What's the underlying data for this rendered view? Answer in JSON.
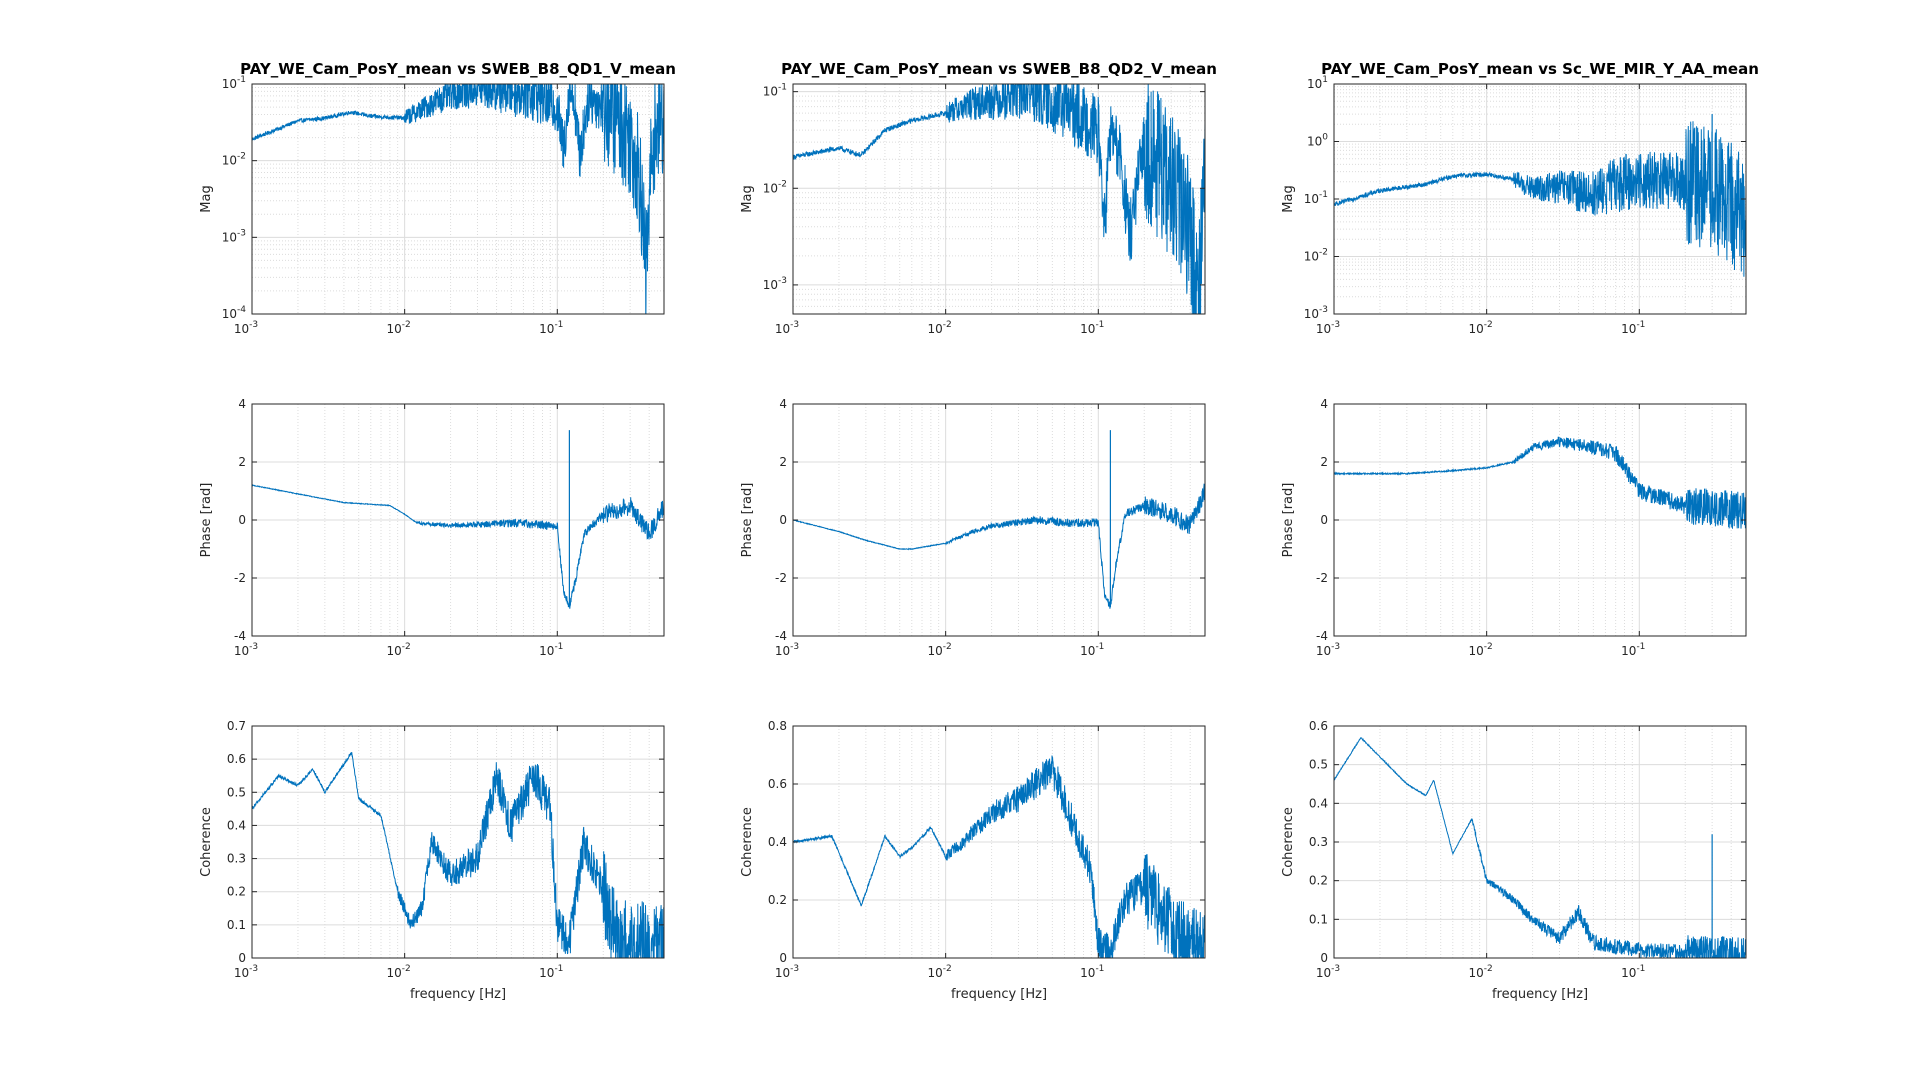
{
  "figure": {
    "colors": {
      "line": "#0072BD",
      "grid": "#dcdcdc",
      "axis": "#262626"
    },
    "grid": true
  },
  "chart_data": [
    {
      "type": "line",
      "title": "PAY_WE_Cam_PosY_mean vs SWEB_B8_QD1_V_mean",
      "ylabel": "Mag",
      "xlabel": "",
      "xscale": "log",
      "yscale": "log",
      "xlim": [
        0.001,
        0.5
      ],
      "ylim": [
        0.0001,
        0.1
      ],
      "xticks": [
        0.001,
        0.01,
        0.1
      ],
      "xtick_labels": [
        "10",
        "10",
        "10"
      ],
      "xtick_exps": [
        "-3",
        "-2",
        "-1"
      ],
      "yticks": [
        0.0001,
        0.001,
        0.01,
        0.1
      ],
      "ytick_labels": [
        "10",
        "10",
        "10",
        "10"
      ],
      "ytick_exps": [
        "-4",
        "-3",
        "-2",
        "-1"
      ],
      "profile": [
        [
          0.001,
          0.019
        ],
        [
          0.002,
          0.033
        ],
        [
          0.003,
          0.036
        ],
        [
          0.0045,
          0.043
        ],
        [
          0.006,
          0.038
        ],
        [
          0.01,
          0.036
        ],
        [
          0.015,
          0.055
        ],
        [
          0.02,
          0.075
        ],
        [
          0.03,
          0.09
        ],
        [
          0.04,
          0.088
        ],
        [
          0.06,
          0.08
        ],
        [
          0.08,
          0.065
        ],
        [
          0.1,
          0.05
        ],
        [
          0.11,
          0.013
        ],
        [
          0.12,
          0.09
        ],
        [
          0.13,
          0.06
        ],
        [
          0.14,
          0.011
        ],
        [
          0.16,
          0.07
        ],
        [
          0.2,
          0.05
        ],
        [
          0.25,
          0.035
        ],
        [
          0.3,
          0.02
        ],
        [
          0.35,
          0.006
        ],
        [
          0.38,
          0.0003
        ],
        [
          0.42,
          0.02
        ],
        [
          0.5,
          0.04
        ]
      ],
      "noise_start": 0.01,
      "noise_amp": 0.35,
      "spikes": []
    },
    {
      "type": "line",
      "title": "PAY_WE_Cam_PosY_mean vs SWEB_B8_QD2_V_mean",
      "ylabel": "Mag",
      "xlabel": "",
      "xscale": "log",
      "yscale": "log",
      "xlim": [
        0.001,
        0.5
      ],
      "ylim": [
        0.0005,
        0.12
      ],
      "xticks": [
        0.001,
        0.01,
        0.1
      ],
      "xtick_labels": [
        "10",
        "10",
        "10"
      ],
      "xtick_exps": [
        "-3",
        "-2",
        "-1"
      ],
      "yticks": [
        0.001,
        0.01,
        0.1
      ],
      "ytick_labels": [
        "10",
        "10",
        "10"
      ],
      "ytick_exps": [
        "-3",
        "-2",
        "-1"
      ],
      "profile": [
        [
          0.001,
          0.021
        ],
        [
          0.002,
          0.026
        ],
        [
          0.0028,
          0.022
        ],
        [
          0.004,
          0.04
        ],
        [
          0.006,
          0.05
        ],
        [
          0.01,
          0.06
        ],
        [
          0.015,
          0.075
        ],
        [
          0.025,
          0.09
        ],
        [
          0.035,
          0.1
        ],
        [
          0.05,
          0.08
        ],
        [
          0.07,
          0.06
        ],
        [
          0.1,
          0.04
        ],
        [
          0.11,
          0.004
        ],
        [
          0.12,
          0.04
        ],
        [
          0.14,
          0.02
        ],
        [
          0.16,
          0.003
        ],
        [
          0.2,
          0.03
        ],
        [
          0.3,
          0.01
        ],
        [
          0.4,
          0.004
        ],
        [
          0.45,
          0.0007
        ],
        [
          0.5,
          0.02
        ]
      ],
      "noise_start": 0.01,
      "noise_amp": 0.35,
      "spikes": []
    },
    {
      "type": "line",
      "title": "PAY_WE_Cam_PosY_mean vs Sc_WE_MIR_Y_AA_mean",
      "ylabel": "Mag",
      "xlabel": "",
      "xscale": "log",
      "yscale": "log",
      "xlim": [
        0.001,
        0.5
      ],
      "ylim": [
        0.001,
        10
      ],
      "xticks": [
        0.001,
        0.01,
        0.1
      ],
      "xtick_labels": [
        "10",
        "10",
        "10"
      ],
      "xtick_exps": [
        "-3",
        "-2",
        "-1"
      ],
      "yticks": [
        0.001,
        0.01,
        0.1,
        1,
        10
      ],
      "ytick_labels": [
        "10",
        "10",
        "10",
        "10",
        "10"
      ],
      "ytick_exps": [
        "-3",
        "-2",
        "-1",
        "0",
        "1"
      ],
      "profile": [
        [
          0.001,
          0.08
        ],
        [
          0.002,
          0.14
        ],
        [
          0.004,
          0.18
        ],
        [
          0.006,
          0.25
        ],
        [
          0.01,
          0.27
        ],
        [
          0.015,
          0.22
        ],
        [
          0.02,
          0.15
        ],
        [
          0.03,
          0.16
        ],
        [
          0.05,
          0.12
        ],
        [
          0.07,
          0.18
        ],
        [
          0.1,
          0.22
        ],
        [
          0.2,
          0.2
        ],
        [
          0.3,
          0.15
        ],
        [
          0.4,
          0.08
        ],
        [
          0.5,
          0.05
        ]
      ],
      "noise_start": 0.015,
      "noise_amp": 0.5,
      "spikes": [
        [
          0.3,
          3.0
        ]
      ]
    },
    {
      "type": "line",
      "title": "",
      "ylabel": "Phase [rad]",
      "xlabel": "",
      "xscale": "log",
      "yscale": "linear",
      "xlim": [
        0.001,
        0.5
      ],
      "ylim": [
        -4,
        4
      ],
      "xticks": [
        0.001,
        0.01,
        0.1
      ],
      "xtick_labels": [
        "10",
        "10",
        "10"
      ],
      "xtick_exps": [
        "-3",
        "-2",
        "-1"
      ],
      "yticks": [
        -4,
        -2,
        0,
        2,
        4
      ],
      "ytick_labels": [
        "-4",
        "-2",
        "0",
        "2",
        "4"
      ],
      "profile": [
        [
          0.001,
          1.2
        ],
        [
          0.002,
          0.9
        ],
        [
          0.004,
          0.6
        ],
        [
          0.008,
          0.5
        ],
        [
          0.01,
          0.2
        ],
        [
          0.012,
          -0.1
        ],
        [
          0.02,
          -0.2
        ],
        [
          0.05,
          -0.1
        ],
        [
          0.1,
          -0.2
        ],
        [
          0.11,
          -2.5
        ],
        [
          0.12,
          -3.0
        ],
        [
          0.13,
          -2.2
        ],
        [
          0.15,
          -0.5
        ],
        [
          0.2,
          0.2
        ],
        [
          0.3,
          0.5
        ],
        [
          0.4,
          -0.5
        ],
        [
          0.5,
          0.5
        ]
      ],
      "noise_start": 0.012,
      "noise_amp": 0.15,
      "spikes": [
        [
          0.12,
          3.1
        ]
      ]
    },
    {
      "type": "line",
      "title": "",
      "ylabel": "Phase [rad]",
      "xlabel": "",
      "xscale": "log",
      "yscale": "linear",
      "xlim": [
        0.001,
        0.5
      ],
      "ylim": [
        -4,
        4
      ],
      "xticks": [
        0.001,
        0.01,
        0.1
      ],
      "xtick_labels": [
        "10",
        "10",
        "10"
      ],
      "xtick_exps": [
        "-3",
        "-2",
        "-1"
      ],
      "yticks": [
        -4,
        -2,
        0,
        2,
        4
      ],
      "ytick_labels": [
        "-4",
        "-2",
        "0",
        "2",
        "4"
      ],
      "profile": [
        [
          0.001,
          0.0
        ],
        [
          0.002,
          -0.4
        ],
        [
          0.003,
          -0.7
        ],
        [
          0.005,
          -1.0
        ],
        [
          0.006,
          -1.0
        ],
        [
          0.01,
          -0.8
        ],
        [
          0.015,
          -0.4
        ],
        [
          0.02,
          -0.2
        ],
        [
          0.04,
          0.0
        ],
        [
          0.06,
          -0.1
        ],
        [
          0.1,
          -0.1
        ],
        [
          0.11,
          -2.6
        ],
        [
          0.12,
          -3.0
        ],
        [
          0.13,
          -1.6
        ],
        [
          0.15,
          0.2
        ],
        [
          0.2,
          0.5
        ],
        [
          0.3,
          0.2
        ],
        [
          0.4,
          -0.2
        ],
        [
          0.5,
          1.0
        ]
      ],
      "noise_start": 0.01,
      "noise_amp": 0.15,
      "spikes": [
        [
          0.12,
          3.1
        ]
      ]
    },
    {
      "type": "line",
      "title": "",
      "ylabel": "Phase [rad]",
      "xlabel": "",
      "xscale": "log",
      "yscale": "linear",
      "xlim": [
        0.001,
        0.5
      ],
      "ylim": [
        -4,
        4
      ],
      "xticks": [
        0.001,
        0.01,
        0.1
      ],
      "xtick_labels": [
        "10",
        "10",
        "10"
      ],
      "xtick_exps": [
        "-3",
        "-2",
        "-1"
      ],
      "yticks": [
        -4,
        -2,
        0,
        2,
        4
      ],
      "ytick_labels": [
        "-4",
        "-2",
        "0",
        "2",
        "4"
      ],
      "profile": [
        [
          0.001,
          1.6
        ],
        [
          0.003,
          1.6
        ],
        [
          0.006,
          1.7
        ],
        [
          0.01,
          1.8
        ],
        [
          0.015,
          2.0
        ],
        [
          0.02,
          2.5
        ],
        [
          0.03,
          2.7
        ],
        [
          0.05,
          2.5
        ],
        [
          0.07,
          2.3
        ],
        [
          0.1,
          1.0
        ],
        [
          0.2,
          0.5
        ],
        [
          0.5,
          0.3
        ]
      ],
      "noise_start": 0.015,
      "noise_amp": 0.3,
      "spikes": []
    },
    {
      "type": "line",
      "title": "",
      "ylabel": "Coherence",
      "xlabel": "frequency [Hz]",
      "xscale": "log",
      "yscale": "linear",
      "xlim": [
        0.001,
        0.5
      ],
      "ylim": [
        0,
        0.7
      ],
      "xticks": [
        0.001,
        0.01,
        0.1
      ],
      "xtick_labels": [
        "10",
        "10",
        "10"
      ],
      "xtick_exps": [
        "-3",
        "-2",
        "-1"
      ],
      "yticks": [
        0,
        0.1,
        0.2,
        0.3,
        0.4,
        0.5,
        0.6,
        0.7
      ],
      "ytick_labels": [
        "0",
        "0.1",
        "0.2",
        "0.3",
        "0.4",
        "0.5",
        "0.6",
        "0.7"
      ],
      "profile": [
        [
          0.001,
          0.45
        ],
        [
          0.0015,
          0.55
        ],
        [
          0.002,
          0.52
        ],
        [
          0.0025,
          0.57
        ],
        [
          0.003,
          0.5
        ],
        [
          0.0045,
          0.62
        ],
        [
          0.005,
          0.48
        ],
        [
          0.007,
          0.43
        ],
        [
          0.009,
          0.2
        ],
        [
          0.011,
          0.1
        ],
        [
          0.013,
          0.15
        ],
        [
          0.015,
          0.35
        ],
        [
          0.02,
          0.25
        ],
        [
          0.03,
          0.3
        ],
        [
          0.04,
          0.55
        ],
        [
          0.05,
          0.4
        ],
        [
          0.07,
          0.55
        ],
        [
          0.09,
          0.45
        ],
        [
          0.1,
          0.1
        ],
        [
          0.12,
          0.05
        ],
        [
          0.15,
          0.35
        ],
        [
          0.2,
          0.2
        ],
        [
          0.25,
          0.05
        ],
        [
          0.5,
          0.03
        ]
      ],
      "noise_start": 0.009,
      "noise_amp": 0.06,
      "spikes": []
    },
    {
      "type": "line",
      "title": "",
      "ylabel": "Coherence",
      "xlabel": "frequency [Hz]",
      "xscale": "log",
      "yscale": "linear",
      "xlim": [
        0.001,
        0.5
      ],
      "ylim": [
        0,
        0.8
      ],
      "xticks": [
        0.001,
        0.01,
        0.1
      ],
      "xtick_labels": [
        "10",
        "10",
        "10"
      ],
      "xtick_exps": [
        "-3",
        "-2",
        "-1"
      ],
      "yticks": [
        0,
        0.2,
        0.4,
        0.6,
        0.8
      ],
      "ytick_labels": [
        "0",
        "0.2",
        "0.4",
        "0.6",
        "0.8"
      ],
      "profile": [
        [
          0.001,
          0.4
        ],
        [
          0.0018,
          0.42
        ],
        [
          0.0028,
          0.18
        ],
        [
          0.004,
          0.42
        ],
        [
          0.005,
          0.35
        ],
        [
          0.006,
          0.38
        ],
        [
          0.008,
          0.45
        ],
        [
          0.01,
          0.35
        ],
        [
          0.013,
          0.4
        ],
        [
          0.02,
          0.5
        ],
        [
          0.03,
          0.55
        ],
        [
          0.05,
          0.65
        ],
        [
          0.07,
          0.45
        ],
        [
          0.09,
          0.3
        ],
        [
          0.1,
          0.05
        ],
        [
          0.12,
          0.02
        ],
        [
          0.15,
          0.2
        ],
        [
          0.2,
          0.25
        ],
        [
          0.3,
          0.1
        ],
        [
          0.5,
          0.02
        ]
      ],
      "noise_start": 0.01,
      "noise_amp": 0.06,
      "spikes": []
    },
    {
      "type": "line",
      "title": "",
      "ylabel": "Coherence",
      "xlabel": "frequency [Hz]",
      "xscale": "log",
      "yscale": "linear",
      "xlim": [
        0.001,
        0.5
      ],
      "ylim": [
        0,
        0.6
      ],
      "xticks": [
        0.001,
        0.01,
        0.1
      ],
      "xtick_labels": [
        "10",
        "10",
        "10"
      ],
      "xtick_exps": [
        "-3",
        "-2",
        "-1"
      ],
      "yticks": [
        0,
        0.1,
        0.2,
        0.3,
        0.4,
        0.5,
        0.6
      ],
      "ytick_labels": [
        "0",
        "0.1",
        "0.2",
        "0.3",
        "0.4",
        "0.5",
        "0.6"
      ],
      "profile": [
        [
          0.001,
          0.46
        ],
        [
          0.0015,
          0.57
        ],
        [
          0.002,
          0.52
        ],
        [
          0.003,
          0.45
        ],
        [
          0.004,
          0.42
        ],
        [
          0.0045,
          0.46
        ],
        [
          0.006,
          0.27
        ],
        [
          0.008,
          0.36
        ],
        [
          0.01,
          0.2
        ],
        [
          0.012,
          0.18
        ],
        [
          0.015,
          0.15
        ],
        [
          0.02,
          0.1
        ],
        [
          0.03,
          0.05
        ],
        [
          0.04,
          0.12
        ],
        [
          0.05,
          0.04
        ],
        [
          0.07,
          0.03
        ],
        [
          0.1,
          0.02
        ],
        [
          0.5,
          0.01
        ]
      ],
      "noise_start": 0.008,
      "noise_amp": 0.02,
      "spikes": [
        [
          0.3,
          0.32
        ]
      ]
    }
  ]
}
